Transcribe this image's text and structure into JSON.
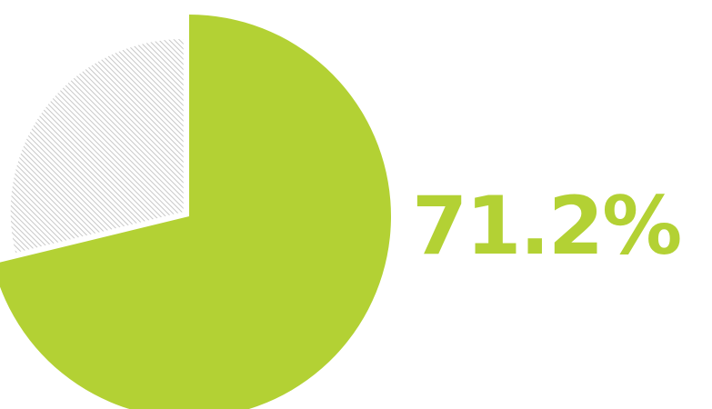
{
  "chart_data": {
    "type": "pie",
    "slices": [
      {
        "value": 71.2,
        "color": "#b3d134",
        "fill": "solid"
      },
      {
        "value": 28.8,
        "color": "#c8c8c8",
        "fill": "hatched"
      }
    ],
    "highlight_label": "71.2%",
    "highlight_color": "#b3d134"
  }
}
